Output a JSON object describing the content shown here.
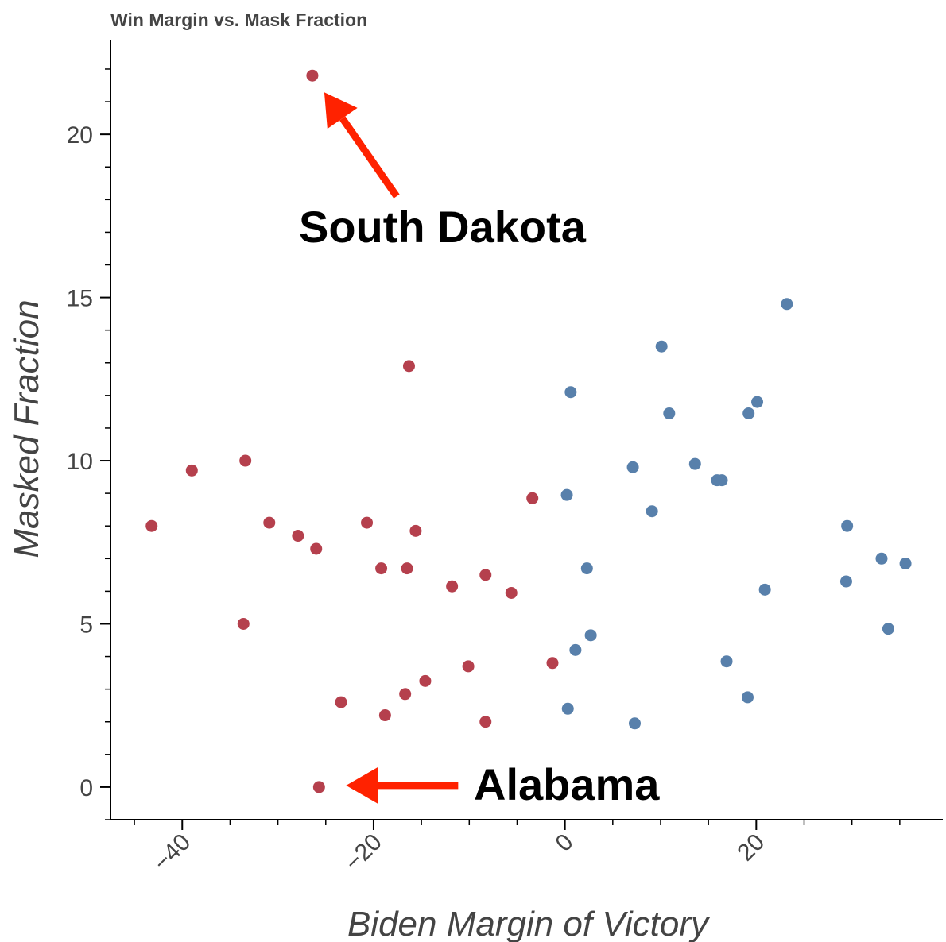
{
  "colors": {
    "red": "#b5404d",
    "blue": "#5880ab",
    "arrow": "#ff2200",
    "axis": "#000000",
    "text": "#444444"
  },
  "chart_data": {
    "type": "scatter",
    "title": "Win Margin vs. Mask Fraction",
    "xlabel": "Biden Margin of Victory",
    "ylabel": "Masked Fraction",
    "xlim": [
      -47.5,
      39.5
    ],
    "ylim": [
      -1,
      22.9
    ],
    "x_ticks": [
      -40,
      -20,
      0,
      20
    ],
    "y_ticks": [
      0,
      5,
      10,
      15,
      20
    ],
    "grid": false,
    "series": [
      {
        "color": "red",
        "points": [
          [
            -43.2,
            8.0
          ],
          [
            -39.0,
            9.7
          ],
          [
            -33.4,
            10.0
          ],
          [
            -30.9,
            8.1
          ],
          [
            -27.9,
            7.7
          ],
          [
            -26.0,
            7.3
          ],
          [
            -33.6,
            5.0
          ],
          [
            -26.4,
            21.8
          ],
          [
            -16.3,
            12.9
          ],
          [
            -20.7,
            8.1
          ],
          [
            -15.6,
            7.85
          ],
          [
            -19.2,
            6.7
          ],
          [
            -16.5,
            6.7
          ],
          [
            -11.8,
            6.15
          ],
          [
            -8.3,
            6.5
          ],
          [
            -5.6,
            5.95
          ],
          [
            -3.4,
            8.85
          ],
          [
            -10.1,
            3.7
          ],
          [
            -1.3,
            3.8
          ],
          [
            -14.6,
            3.25
          ],
          [
            -16.7,
            2.85
          ],
          [
            -23.4,
            2.6
          ],
          [
            -18.8,
            2.2
          ],
          [
            -8.3,
            2.0
          ],
          [
            -25.7,
            0.0
          ]
        ]
      },
      {
        "color": "blue",
        "points": [
          [
            23.2,
            14.8
          ],
          [
            10.1,
            13.5
          ],
          [
            0.6,
            12.1
          ],
          [
            10.9,
            11.45
          ],
          [
            19.2,
            11.45
          ],
          [
            20.1,
            11.8
          ],
          [
            7.1,
            9.8
          ],
          [
            13.6,
            9.9
          ],
          [
            15.9,
            9.4
          ],
          [
            16.4,
            9.4
          ],
          [
            0.2,
            8.95
          ],
          [
            9.1,
            8.45
          ],
          [
            2.3,
            6.7
          ],
          [
            29.5,
            8.0
          ],
          [
            33.1,
            7.0
          ],
          [
            35.6,
            6.85
          ],
          [
            29.4,
            6.3
          ],
          [
            20.9,
            6.05
          ],
          [
            33.8,
            4.85
          ],
          [
            2.7,
            4.65
          ],
          [
            1.1,
            4.2
          ],
          [
            16.9,
            3.85
          ],
          [
            19.1,
            2.75
          ],
          [
            0.3,
            2.4
          ],
          [
            7.3,
            1.95
          ]
        ]
      }
    ],
    "annotations": [
      {
        "text": "South Dakota",
        "target": [
          -26.4,
          21.8
        ]
      },
      {
        "text": "Alabama",
        "target": [
          -25.7,
          0.0
        ]
      }
    ]
  }
}
